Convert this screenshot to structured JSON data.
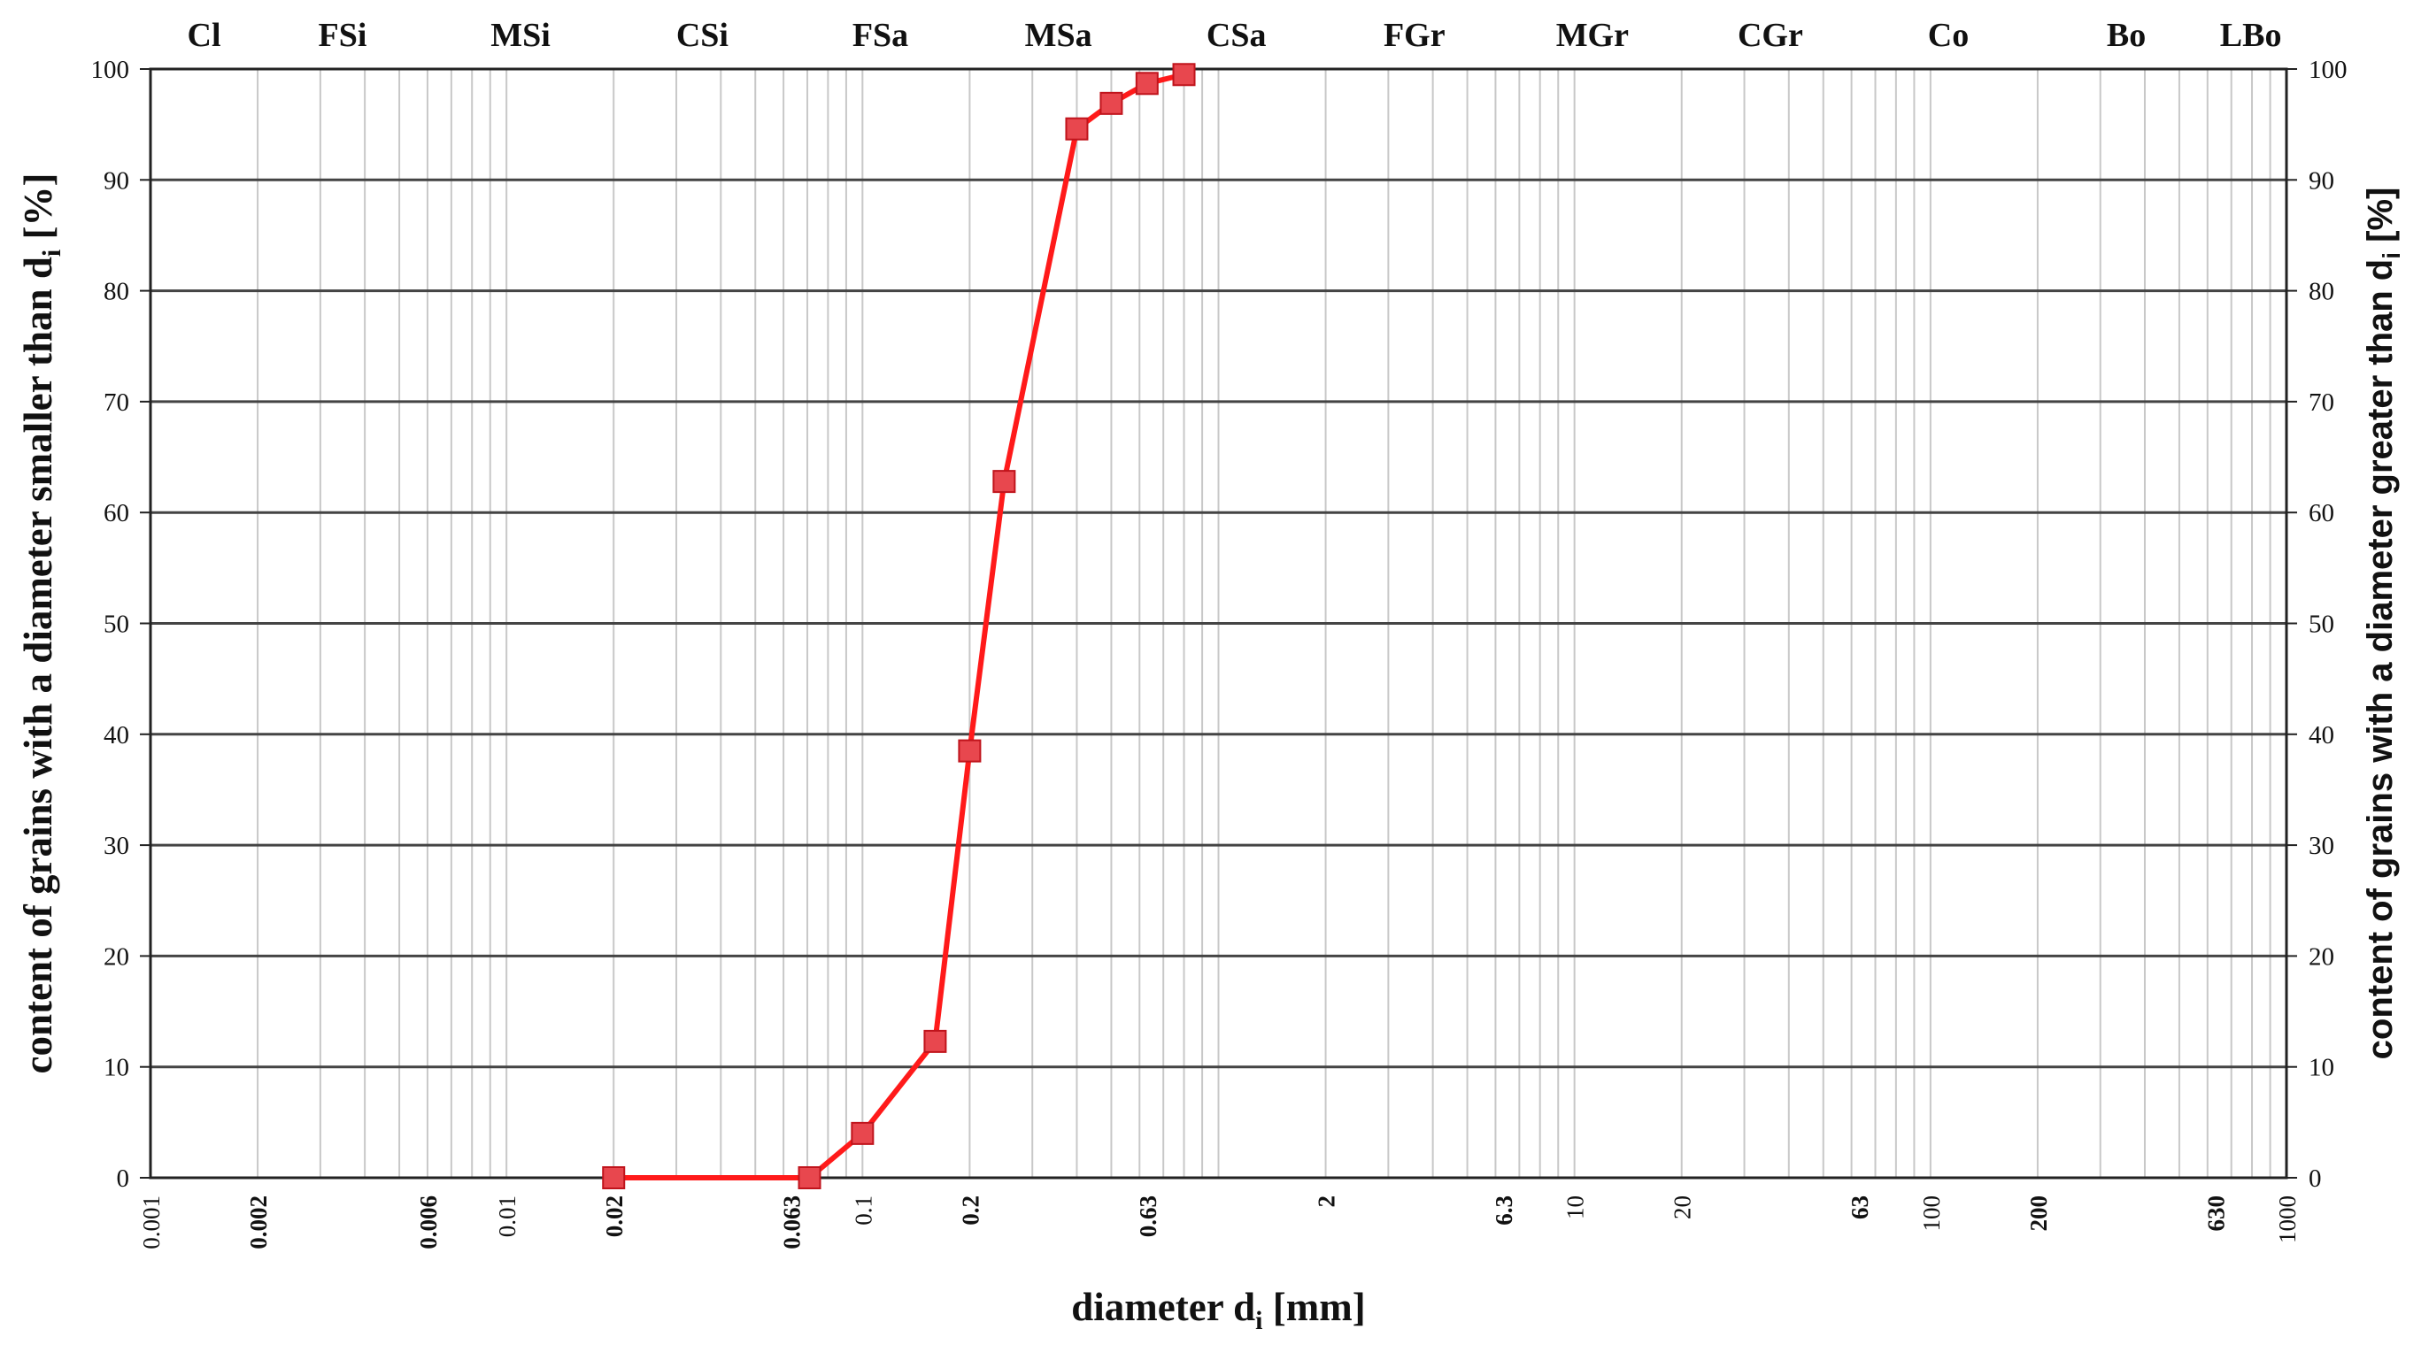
{
  "chart_data": {
    "type": "line",
    "title": "",
    "x_scale": "log",
    "xlim": [
      0.001,
      1000
    ],
    "ylim": [
      0,
      100
    ],
    "y2lim": [
      100,
      0
    ],
    "grid": true,
    "legend": "none",
    "xlabel": {
      "main": "diameter d",
      "sub": "i",
      "unit": " [mm]"
    },
    "ylabel": {
      "main": "content of grains with a diameter smaller than d",
      "sub": "i",
      "unit": " [%]"
    },
    "y2label": {
      "main": "content of grains with a diameter greater than d",
      "sub": "i",
      "unit": " [%]"
    },
    "x_tick_labels": [
      {
        "value": 0.001,
        "label": "0.001",
        "bold": false
      },
      {
        "value": 0.002,
        "label": "0.002",
        "bold": true
      },
      {
        "value": 0.006,
        "label": "0.006",
        "bold": true
      },
      {
        "value": 0.01,
        "label": "0.01",
        "bold": false
      },
      {
        "value": 0.02,
        "label": "0.02",
        "bold": true
      },
      {
        "value": 0.063,
        "label": "0.063",
        "bold": true
      },
      {
        "value": 0.1,
        "label": "0.1",
        "bold": false
      },
      {
        "value": 0.2,
        "label": "0.2",
        "bold": true
      },
      {
        "value": 0.63,
        "label": "0.63",
        "bold": true
      },
      {
        "value": 2,
        "label": "2",
        "bold": true
      },
      {
        "value": 6.3,
        "label": "6.3",
        "bold": true
      },
      {
        "value": 10,
        "label": "10",
        "bold": false
      },
      {
        "value": 20,
        "label": "20",
        "bold": false
      },
      {
        "value": 63,
        "label": "63",
        "bold": true
      },
      {
        "value": 100,
        "label": "100",
        "bold": false
      },
      {
        "value": 200,
        "label": "200",
        "bold": true
      },
      {
        "value": 630,
        "label": "630",
        "bold": true
      },
      {
        "value": 1000,
        "label": "1000",
        "bold": false
      }
    ],
    "y_ticks": [
      "0",
      "10",
      "20",
      "30",
      "40",
      "50",
      "60",
      "70",
      "80",
      "90",
      "100"
    ],
    "y2_ticks": [
      "0",
      "10",
      "20",
      "30",
      "40",
      "50",
      "60",
      "70",
      "80",
      "90",
      "100"
    ],
    "zones": [
      {
        "label": "Cl",
        "from": 0.001,
        "to": 0.002
      },
      {
        "label": "FSi",
        "from": 0.002,
        "to": 0.006
      },
      {
        "label": "MSi",
        "from": 0.006,
        "to": 0.02
      },
      {
        "label": "CSi",
        "from": 0.02,
        "to": 0.063
      },
      {
        "label": "FSa",
        "from": 0.063,
        "to": 0.2
      },
      {
        "label": "MSa",
        "from": 0.2,
        "to": 0.63
      },
      {
        "label": "CSa",
        "from": 0.63,
        "to": 2
      },
      {
        "label": "FGr",
        "from": 2,
        "to": 6.3
      },
      {
        "label": "MGr",
        "from": 6.3,
        "to": 20
      },
      {
        "label": "CGr",
        "from": 20,
        "to": 63
      },
      {
        "label": "Co",
        "from": 63,
        "to": 200
      },
      {
        "label": "Bo",
        "from": 200,
        "to": 630
      },
      {
        "label": "LBo",
        "from": 630,
        "to": 1000
      }
    ],
    "series": [
      {
        "color": "#ff1a1a",
        "marker_fill": "#e8474e",
        "marker_stroke": "#c0141c",
        "x": [
          0.02,
          0.071,
          0.1,
          0.16,
          0.2,
          0.25,
          0.4,
          0.5,
          0.63,
          0.8
        ],
        "y": [
          0,
          0,
          4,
          12.3,
          38.5,
          62.8,
          94.6,
          96.9,
          98.7,
          99.5
        ]
      }
    ],
    "colors": {
      "minor_grid": "#c8c8c8",
      "major_grid": "#444444",
      "frame": "#222222"
    }
  }
}
